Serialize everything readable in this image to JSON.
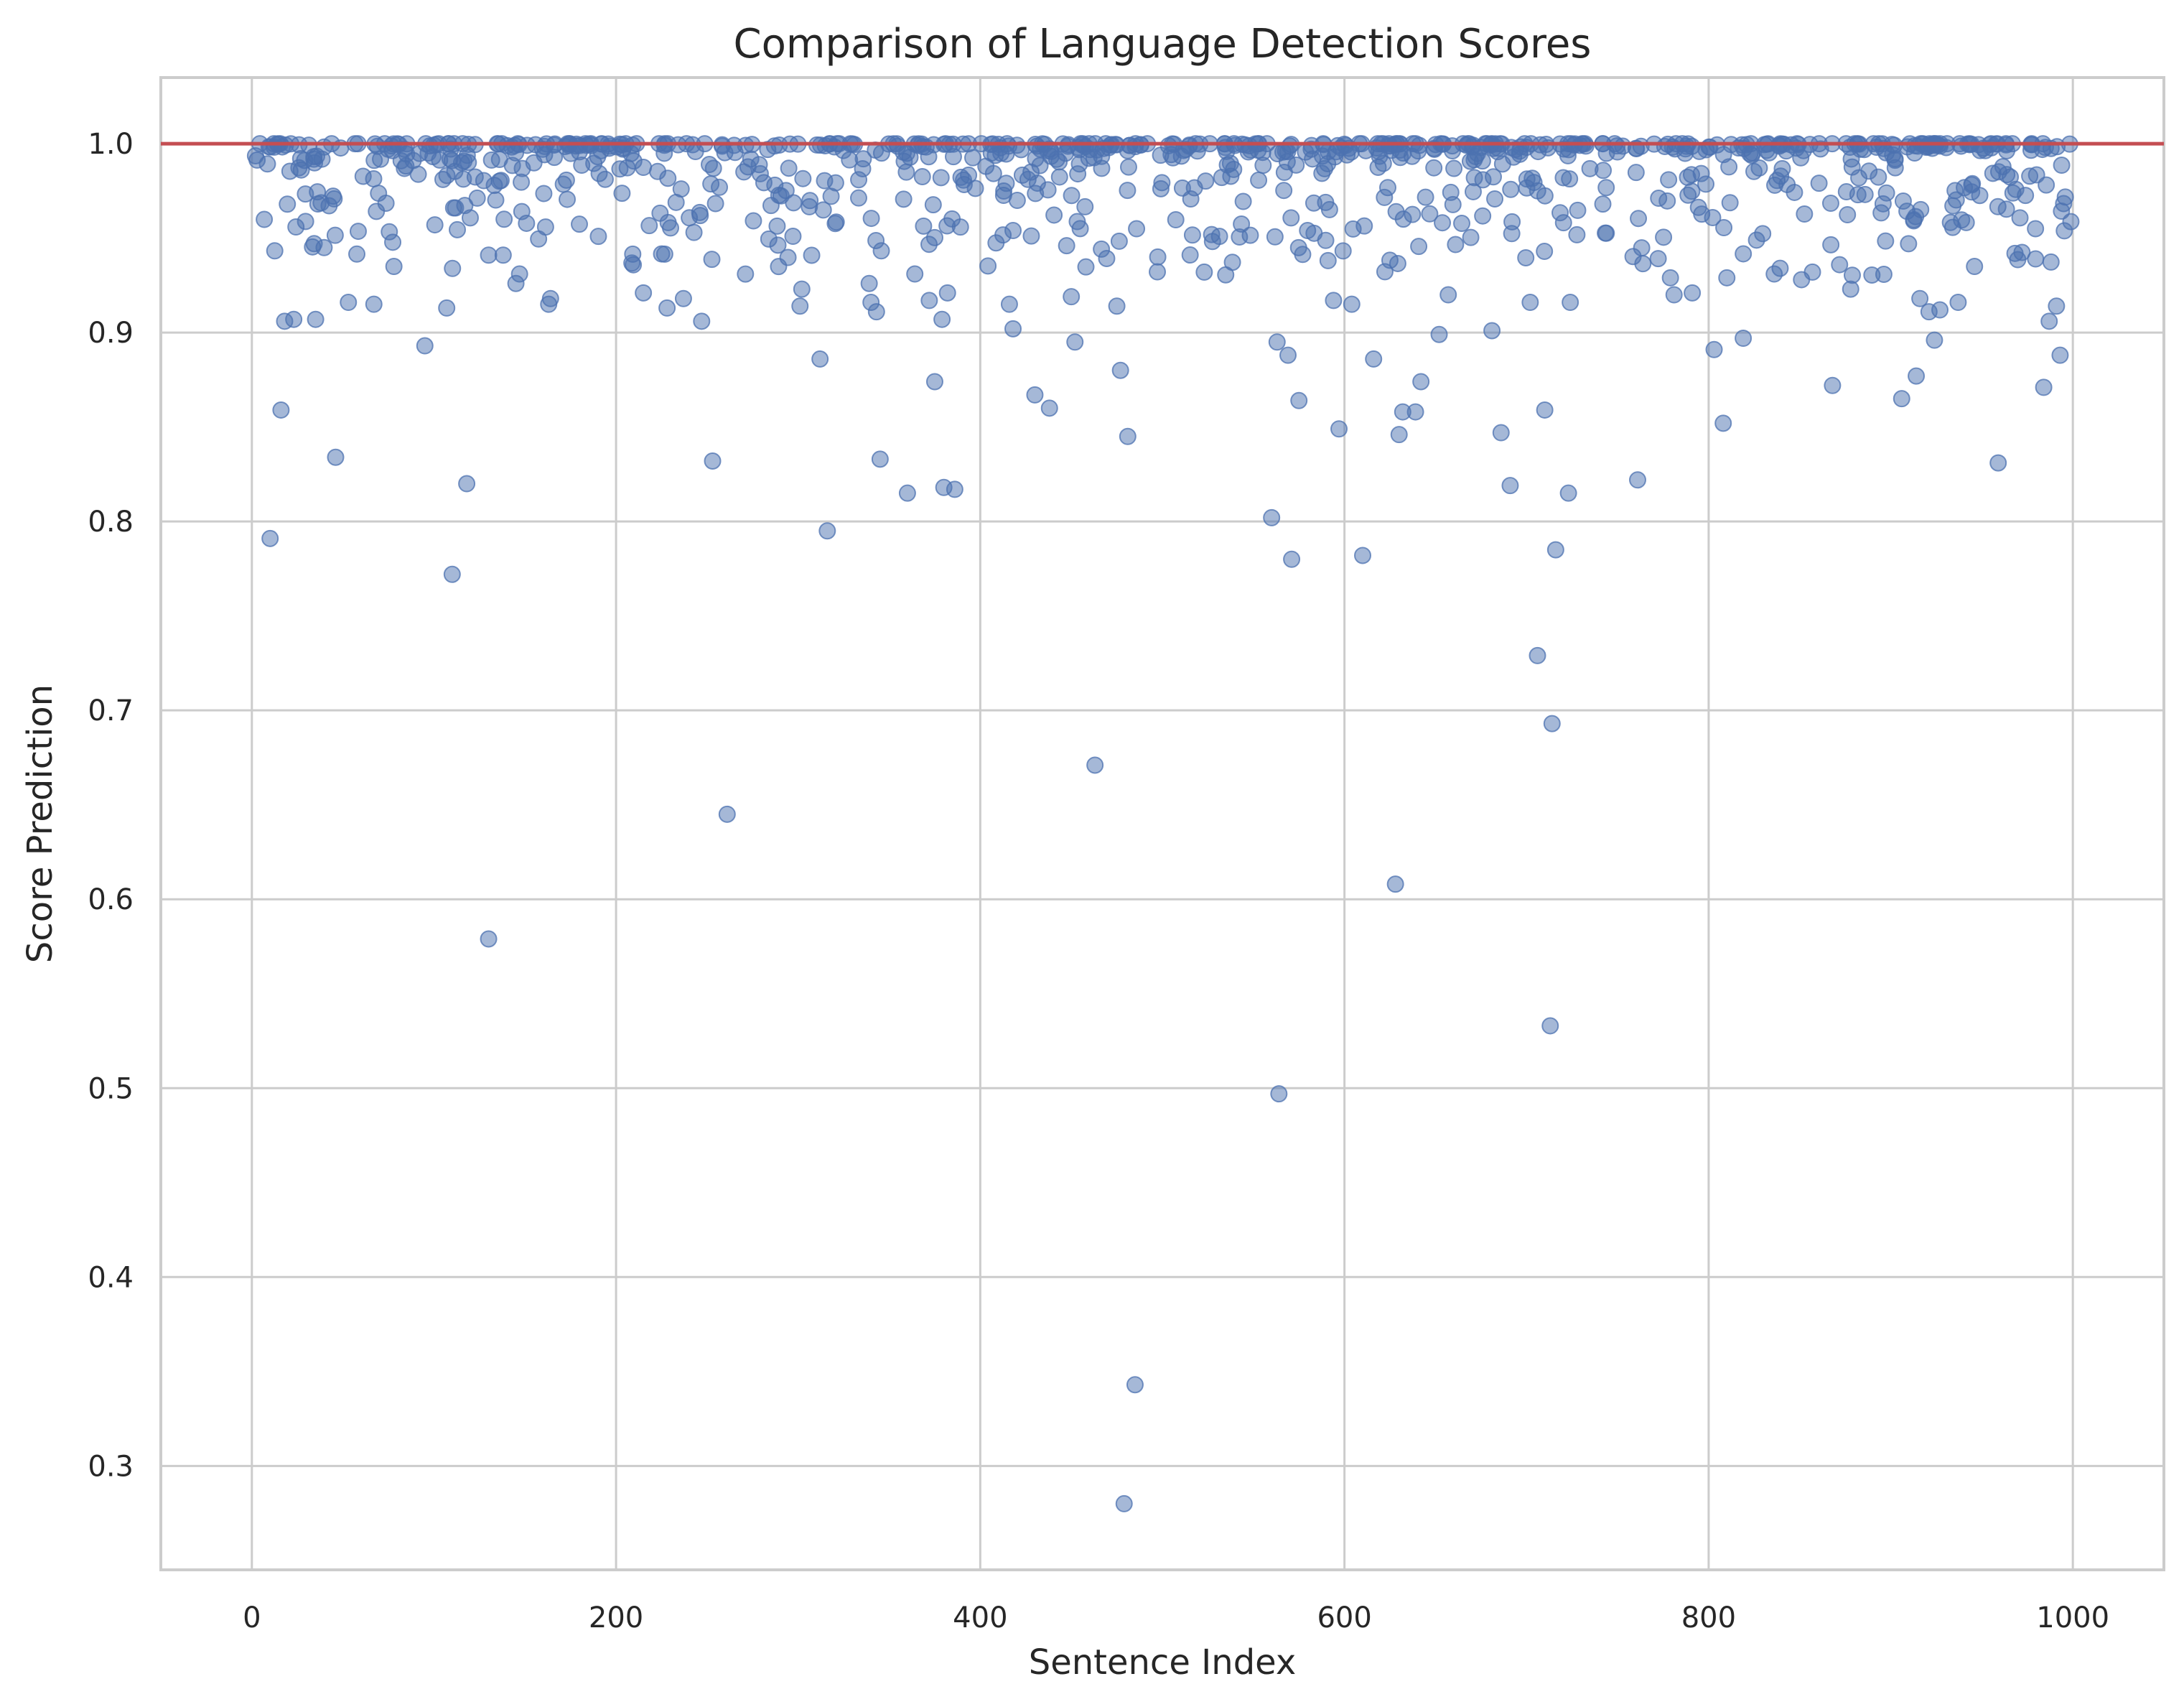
{
  "chart_data": {
    "type": "scatter",
    "title": "Comparison of Language Detection Scores",
    "xlabel": "Sentence Index",
    "ylabel": "Score Prediction",
    "xlim": [
      -50,
      1050
    ],
    "ylim": [
      0.245,
      1.035
    ],
    "xticks": [
      0,
      200,
      400,
      600,
      800,
      1000
    ],
    "yticks": [
      0.3,
      0.4,
      0.5,
      0.6,
      0.7,
      0.8,
      0.9,
      1.0
    ],
    "xtick_labels": [
      "0",
      "200",
      "400",
      "600",
      "800",
      "1000"
    ],
    "ytick_labels": [
      "0.3",
      "0.4",
      "0.5",
      "0.6",
      "0.7",
      "0.8",
      "0.9",
      "1.0"
    ],
    "grid": true,
    "reference_line": {
      "y": 1.0,
      "color": "#c44e52"
    },
    "marker_color": "#4c72b0",
    "outliers": [
      {
        "x": 10,
        "y": 0.791
      },
      {
        "x": 16,
        "y": 0.859
      },
      {
        "x": 18,
        "y": 0.906
      },
      {
        "x": 23,
        "y": 0.907
      },
      {
        "x": 35,
        "y": 0.907
      },
      {
        "x": 46,
        "y": 0.834
      },
      {
        "x": 53,
        "y": 0.916
      },
      {
        "x": 67,
        "y": 0.915
      },
      {
        "x": 78,
        "y": 0.935
      },
      {
        "x": 95,
        "y": 0.893
      },
      {
        "x": 107,
        "y": 0.913
      },
      {
        "x": 110,
        "y": 0.772
      },
      {
        "x": 118,
        "y": 0.82
      },
      {
        "x": 130,
        "y": 0.579
      },
      {
        "x": 130,
        "y": 0.941
      },
      {
        "x": 138,
        "y": 0.941
      },
      {
        "x": 145,
        "y": 0.926
      },
      {
        "x": 147,
        "y": 0.931
      },
      {
        "x": 163,
        "y": 0.915
      },
      {
        "x": 164,
        "y": 0.918
      },
      {
        "x": 215,
        "y": 0.921
      },
      {
        "x": 228,
        "y": 0.913
      },
      {
        "x": 237,
        "y": 0.918
      },
      {
        "x": 247,
        "y": 0.906
      },
      {
        "x": 253,
        "y": 0.832
      },
      {
        "x": 261,
        "y": 0.645
      },
      {
        "x": 302,
        "y": 0.923
      },
      {
        "x": 301,
        "y": 0.914
      },
      {
        "x": 312,
        "y": 0.886
      },
      {
        "x": 316,
        "y": 0.795
      },
      {
        "x": 339,
        "y": 0.926
      },
      {
        "x": 340,
        "y": 0.916
      },
      {
        "x": 343,
        "y": 0.911
      },
      {
        "x": 345,
        "y": 0.833
      },
      {
        "x": 360,
        "y": 0.815
      },
      {
        "x": 372,
        "y": 0.917
      },
      {
        "x": 375,
        "y": 0.874
      },
      {
        "x": 379,
        "y": 0.907
      },
      {
        "x": 380,
        "y": 0.818
      },
      {
        "x": 382,
        "y": 0.921
      },
      {
        "x": 386,
        "y": 0.817
      },
      {
        "x": 416,
        "y": 0.915
      },
      {
        "x": 418,
        "y": 0.902
      },
      {
        "x": 430,
        "y": 0.867
      },
      {
        "x": 438,
        "y": 0.86
      },
      {
        "x": 450,
        "y": 0.919
      },
      {
        "x": 452,
        "y": 0.895
      },
      {
        "x": 463,
        "y": 0.671
      },
      {
        "x": 475,
        "y": 0.914
      },
      {
        "x": 477,
        "y": 0.88
      },
      {
        "x": 479,
        "y": 0.28
      },
      {
        "x": 481,
        "y": 0.845
      },
      {
        "x": 485,
        "y": 0.343
      },
      {
        "x": 523,
        "y": 0.932
      },
      {
        "x": 560,
        "y": 0.802
      },
      {
        "x": 563,
        "y": 0.895
      },
      {
        "x": 564,
        "y": 0.497
      },
      {
        "x": 569,
        "y": 0.888
      },
      {
        "x": 571,
        "y": 0.78
      },
      {
        "x": 575,
        "y": 0.864
      },
      {
        "x": 594,
        "y": 0.917
      },
      {
        "x": 597,
        "y": 0.849
      },
      {
        "x": 604,
        "y": 0.915
      },
      {
        "x": 610,
        "y": 0.782
      },
      {
        "x": 616,
        "y": 0.886
      },
      {
        "x": 628,
        "y": 0.608
      },
      {
        "x": 630,
        "y": 0.846
      },
      {
        "x": 632,
        "y": 0.858
      },
      {
        "x": 639,
        "y": 0.858
      },
      {
        "x": 642,
        "y": 0.874
      },
      {
        "x": 652,
        "y": 0.899
      },
      {
        "x": 657,
        "y": 0.92
      },
      {
        "x": 681,
        "y": 0.901
      },
      {
        "x": 686,
        "y": 0.847
      },
      {
        "x": 691,
        "y": 0.819
      },
      {
        "x": 702,
        "y": 0.916
      },
      {
        "x": 706,
        "y": 0.729
      },
      {
        "x": 710,
        "y": 0.859
      },
      {
        "x": 713,
        "y": 0.533
      },
      {
        "x": 714,
        "y": 0.693
      },
      {
        "x": 716,
        "y": 0.785
      },
      {
        "x": 723,
        "y": 0.815
      },
      {
        "x": 724,
        "y": 0.916
      },
      {
        "x": 761,
        "y": 0.822
      },
      {
        "x": 779,
        "y": 0.929
      },
      {
        "x": 781,
        "y": 0.92
      },
      {
        "x": 791,
        "y": 0.921
      },
      {
        "x": 803,
        "y": 0.891
      },
      {
        "x": 808,
        "y": 0.852
      },
      {
        "x": 810,
        "y": 0.929
      },
      {
        "x": 819,
        "y": 0.897
      },
      {
        "x": 836,
        "y": 0.931
      },
      {
        "x": 851,
        "y": 0.928
      },
      {
        "x": 868,
        "y": 0.872
      },
      {
        "x": 878,
        "y": 0.923
      },
      {
        "x": 906,
        "y": 0.865
      },
      {
        "x": 914,
        "y": 0.877
      },
      {
        "x": 916,
        "y": 0.918
      },
      {
        "x": 921,
        "y": 0.911
      },
      {
        "x": 924,
        "y": 0.896
      },
      {
        "x": 927,
        "y": 0.912
      },
      {
        "x": 937,
        "y": 0.916
      },
      {
        "x": 946,
        "y": 0.935
      },
      {
        "x": 959,
        "y": 0.831
      },
      {
        "x": 984,
        "y": 0.871
      },
      {
        "x": 987,
        "y": 0.906
      },
      {
        "x": 991,
        "y": 0.914
      },
      {
        "x": 993,
        "y": 0.888
      }
    ],
    "main_band": {
      "x_start": 0,
      "x_end": 999,
      "y_min": 0.93,
      "y_max": 1.0,
      "point_count": 890
    }
  }
}
